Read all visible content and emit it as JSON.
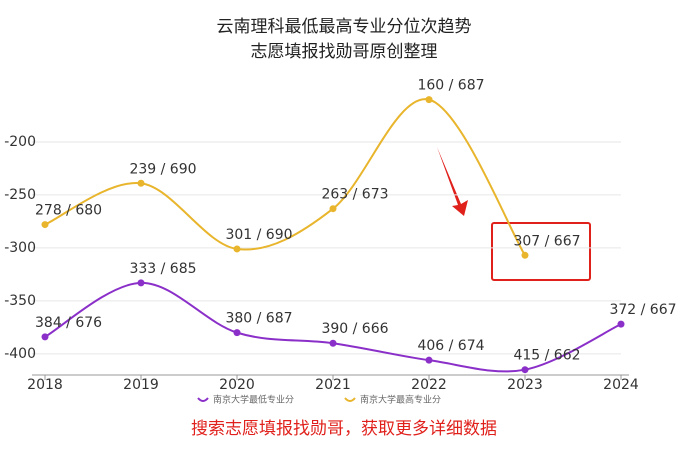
{
  "chart_data": {
    "type": "line",
    "title": "云南理科最低最高专业分位次趋势",
    "subtitle": "志愿填报找勋哥原创整理",
    "footer": "搜索志愿填报找勋哥，获取更多详细数据",
    "categories": [
      "2018",
      "2019",
      "2020",
      "2021",
      "2022",
      "2023",
      "2024"
    ],
    "series": [
      {
        "name": "南京大学最低专业分",
        "color": "#8b2fc9",
        "values": [
          -384,
          -333,
          -380,
          -390,
          -406,
          -415,
          -372
        ],
        "value_labels": [
          "384 / 676",
          "333 / 685",
          "380 / 687",
          "390 / 666",
          "406 / 674",
          "415 / 662",
          "372 / 667"
        ]
      },
      {
        "name": "南京大学最高专业分",
        "color": "#e8b52c",
        "values": [
          -278,
          -239,
          -301,
          -263,
          -160,
          -307,
          null
        ],
        "value_labels": [
          "278 / 680",
          "239 / 690",
          "301 / 690",
          "263 / 673",
          "160 / 687",
          "307 / 667",
          null
        ]
      }
    ],
    "ylim": [
      -420,
      -150
    ],
    "yticks": [
      -200,
      -250,
      -300,
      -350,
      -400
    ],
    "grid": true
  }
}
